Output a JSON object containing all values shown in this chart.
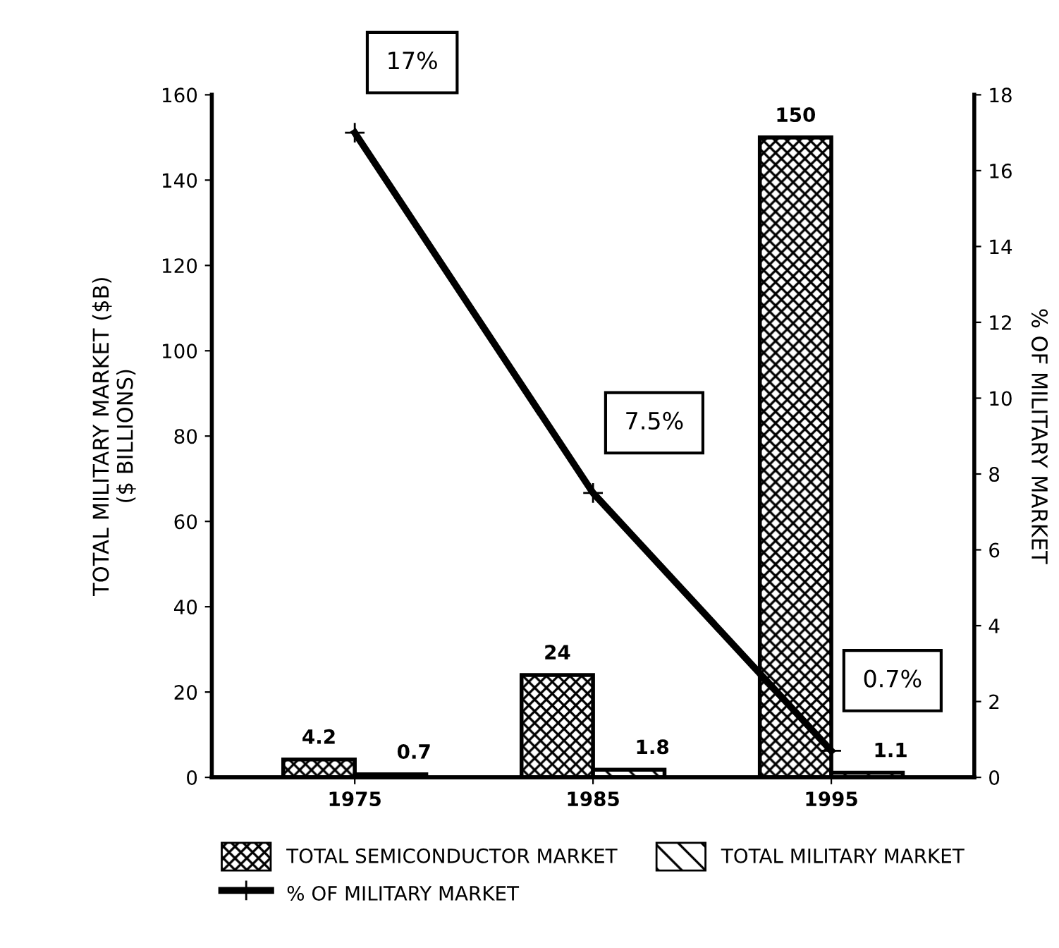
{
  "chart_data": {
    "type": "bar",
    "categories": [
      "1975",
      "1985",
      "1995"
    ],
    "ylabel": "TOTAL MILITARY MARKET ($B)\n($ BILLIONS)",
    "y2label": "% OF MILITARY MARKET",
    "ylim": [
      0,
      160
    ],
    "yticks": [
      0,
      20,
      40,
      60,
      80,
      100,
      120,
      140,
      160
    ],
    "y2lim": [
      0,
      18
    ],
    "y2ticks": [
      0,
      2,
      4,
      6,
      8,
      10,
      12,
      14,
      16,
      18
    ],
    "series": [
      {
        "name": "TOTAL SEMICONDUCTOR MARKET",
        "color": "#000000",
        "values": [
          4.2,
          24,
          150
        ]
      },
      {
        "name": "TOTAL MILITARY MARKET",
        "color": "#000000",
        "values": [
          0.7,
          1.8,
          1.1
        ]
      },
      {
        "name": "% OF MILITARY MARKET",
        "type": "line",
        "axis": "y2",
        "color": "#000000",
        "marker": "cross",
        "values": [
          17,
          7.5,
          0.7
        ],
        "value_labels": [
          "17%",
          "7.5%",
          "0.7%"
        ]
      }
    ],
    "data_labels": true,
    "grid": false,
    "legend": "bottom"
  }
}
